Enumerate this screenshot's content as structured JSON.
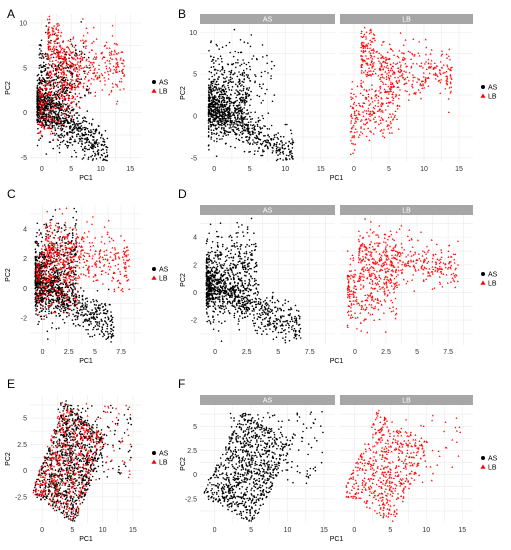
{
  "colors": {
    "AS": "#000000",
    "LB": "#ff0000",
    "strip": "#a6a6a6",
    "grid": "#ebebeb"
  },
  "legend": {
    "items": [
      {
        "label": "AS",
        "color": "#000000",
        "shape": "circle"
      },
      {
        "label": "LB",
        "color": "#ff0000",
        "shape": "triangle"
      }
    ]
  },
  "chart_data": [
    {
      "panel": "A",
      "type": "scatter",
      "facets": null,
      "xlabel": "PC1",
      "ylabel": "PC2",
      "xlim": [
        -2,
        17
      ],
      "ylim": [
        -5.5,
        11
      ],
      "xticks": [
        0,
        5,
        10,
        15
      ],
      "yticks": [
        -5,
        0,
        5,
        10
      ],
      "series": [
        {
          "name": "AS",
          "shape": "circle",
          "n": 2600,
          "cloud": {
            "ymin": -5,
            "ymax": 10.5
          }
        },
        {
          "name": "LB",
          "shape": "triangle",
          "n": 1500,
          "cloud": {
            "ymin": -1,
            "ymax": 9
          }
        }
      ],
      "legend": "right"
    },
    {
      "panel": "B",
      "type": "scatter",
      "facets": [
        "AS",
        "LB"
      ],
      "xlabel": "PC1",
      "ylabel": "PC2",
      "xlim": [
        -2,
        17
      ],
      "ylim": [
        -5.5,
        11
      ],
      "xticks": [
        0,
        5,
        10,
        15
      ],
      "yticks": [
        -5,
        0,
        5,
        10
      ],
      "series": [
        {
          "name": "AS",
          "shape": "circle",
          "n": 2600,
          "cloud": {
            "ymin": -5,
            "ymax": 10.5
          }
        },
        {
          "name": "LB",
          "shape": "triangle",
          "n": 1500,
          "cloud": {
            "ymin": -4.5,
            "ymax": 9
          }
        }
      ],
      "legend": "right"
    },
    {
      "panel": "C",
      "type": "scatter",
      "facets": null,
      "xlabel": "PC1",
      "ylabel": "PC2",
      "xlim": [
        -1.2,
        9.5
      ],
      "ylim": [
        -3.8,
        5.6
      ],
      "xticks": [
        0.0,
        2.5,
        5.0,
        7.5
      ],
      "yticks": [
        -2,
        0,
        2,
        4
      ],
      "series": [
        {
          "name": "AS",
          "shape": "circle",
          "n": 2600,
          "cloud": {
            "ymin": -3.5,
            "ymax": 5.2
          }
        },
        {
          "name": "LB",
          "shape": "triangle",
          "n": 1500,
          "cloud": {
            "ymin": -1,
            "ymax": 4.6
          }
        }
      ],
      "legend": "right"
    },
    {
      "panel": "D",
      "type": "scatter",
      "facets": [
        "AS",
        "LB"
      ],
      "xlabel": "PC1",
      "ylabel": "PC2",
      "xlim": [
        -1.2,
        9.5
      ],
      "ylim": [
        -3.8,
        5.6
      ],
      "xticks": [
        0.0,
        2.5,
        5.0,
        7.5
      ],
      "yticks": [
        -2,
        0,
        2,
        4
      ],
      "series": [
        {
          "name": "AS",
          "shape": "circle",
          "n": 2600,
          "cloud": {
            "ymin": -3.5,
            "ymax": 5.2
          }
        },
        {
          "name": "LB",
          "shape": "triangle",
          "n": 1500,
          "cloud": {
            "ymin": -3,
            "ymax": 4.6
          }
        }
      ],
      "legend": "right"
    },
    {
      "panel": "E",
      "type": "scatter",
      "facets": null,
      "xlabel": "PC1",
      "ylabel": "PC2",
      "xlim": [
        -2,
        16.5
      ],
      "ylim": [
        -5,
        7.2
      ],
      "xticks": [
        0,
        5,
        10,
        15
      ],
      "yticks": [
        -2.5,
        0.0,
        2.5,
        5.0
      ],
      "series": [
        {
          "name": "AS",
          "shape": "circle",
          "n": 2200,
          "cloud": {
            "ymin": -4.5,
            "ymax": 6.8
          }
        },
        {
          "name": "LB",
          "shape": "triangle",
          "n": 1300,
          "cloud": {
            "ymin": -4,
            "ymax": 6.5
          }
        }
      ],
      "legend": "right"
    },
    {
      "panel": "F",
      "type": "scatter",
      "facets": [
        "AS",
        "LB"
      ],
      "xlabel": "PC1",
      "ylabel": "PC2",
      "xlim": [
        -2,
        16.5
      ],
      "ylim": [
        -5,
        7.2
      ],
      "xticks": [
        0,
        5,
        10,
        15
      ],
      "yticks": [
        -2.5,
        0.0,
        2.5,
        5.0
      ],
      "series": [
        {
          "name": "AS",
          "shape": "circle",
          "n": 2200,
          "cloud": {
            "ymin": -4.5,
            "ymax": 6.8
          }
        },
        {
          "name": "LB",
          "shape": "triangle",
          "n": 1300,
          "cloud": {
            "ymin": -4,
            "ymax": 6.5
          }
        }
      ],
      "legend": "right"
    }
  ]
}
